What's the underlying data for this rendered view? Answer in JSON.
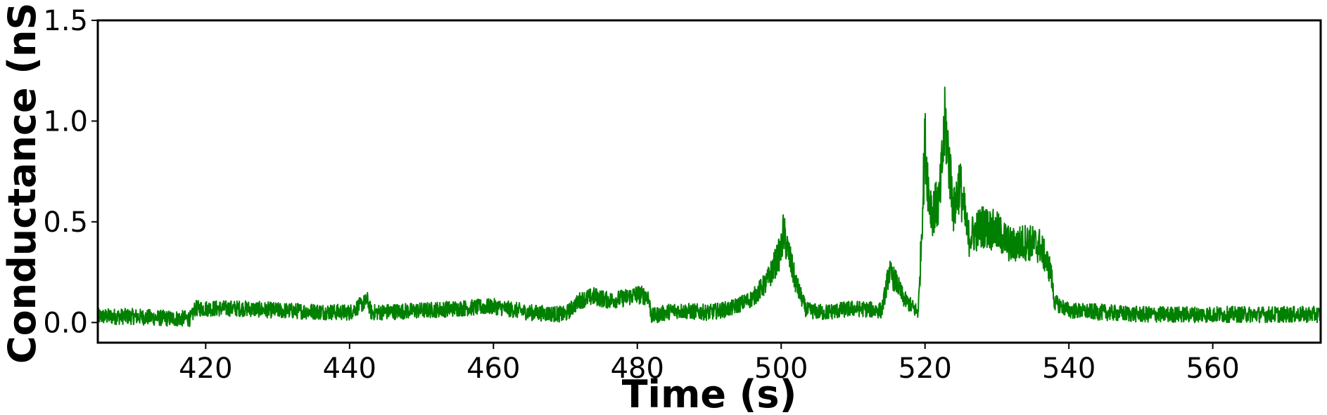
{
  "chart_data": {
    "type": "line",
    "title": "",
    "xlabel": "Time (s)",
    "ylabel": "Conductance (nS)",
    "xlim": [
      405,
      575
    ],
    "ylim": [
      -0.1,
      1.5
    ],
    "x_ticks": [
      420,
      440,
      460,
      480,
      500,
      520,
      540,
      560
    ],
    "x_tick_labels": [
      "420",
      "440",
      "460",
      "480",
      "500",
      "520",
      "540",
      "560"
    ],
    "y_ticks": [
      0.0,
      0.5,
      1.0,
      1.5
    ],
    "y_tick_labels": [
      "0.0",
      "0.5",
      "1.0",
      "1.5"
    ],
    "grid": false,
    "legend": "none",
    "series": [
      {
        "color": "#008000",
        "x": [
          405,
          410,
          415,
          418,
          418.5,
          425,
          430,
          440,
          442.5,
          443,
          450,
          460,
          465,
          470,
          472,
          474,
          476,
          478,
          480,
          481.5,
          482,
          485,
          490,
          493,
          496,
          498,
          500,
          500.3,
          502,
          503.5,
          506,
          510,
          514,
          515,
          516,
          517,
          519,
          519.2,
          520,
          520.5,
          521,
          522,
          522.8,
          524,
          524.8,
          526,
          528,
          530,
          532,
          534,
          536,
          537.5,
          538,
          540,
          545,
          550,
          560,
          570,
          575
        ],
        "y": [
          0.03,
          0.03,
          0.02,
          0.02,
          0.07,
          0.07,
          0.06,
          0.05,
          0.11,
          0.05,
          0.06,
          0.08,
          0.05,
          0.04,
          0.11,
          0.13,
          0.11,
          0.12,
          0.14,
          0.13,
          0.03,
          0.06,
          0.05,
          0.07,
          0.12,
          0.2,
          0.36,
          0.45,
          0.2,
          0.06,
          0.05,
          0.07,
          0.06,
          0.25,
          0.2,
          0.12,
          0.05,
          0.15,
          0.9,
          0.65,
          0.55,
          0.6,
          1.0,
          0.55,
          0.7,
          0.42,
          0.48,
          0.45,
          0.38,
          0.4,
          0.38,
          0.25,
          0.1,
          0.06,
          0.05,
          0.04,
          0.04,
          0.04,
          0.04
        ]
      }
    ]
  }
}
